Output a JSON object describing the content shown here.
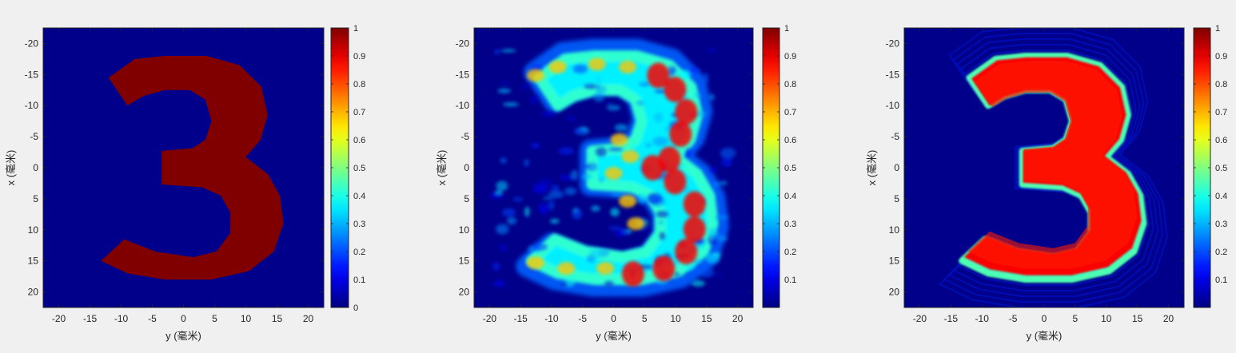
{
  "figure": {
    "background": "#f0f0f0",
    "panels": [
      {
        "id": "target",
        "colormap": "jet",
        "shape": "digit-3-sharp",
        "xlabel": "y (毫米)",
        "ylabel": "x (毫米)"
      },
      {
        "id": "reconstruction-noisy",
        "colormap": "jet",
        "shape": "digit-3-noisy",
        "xlabel": "y (毫米)",
        "ylabel": "x (毫米)"
      },
      {
        "id": "reconstruction-smooth",
        "colormap": "jet",
        "shape": "digit-3-smooth",
        "xlabel": "y (毫米)",
        "ylabel": "x (毫米)"
      }
    ]
  },
  "chart_data": [
    {
      "type": "heatmap",
      "title": "",
      "xlabel": "y (毫米)",
      "ylabel": "x (毫米)",
      "xlim": [
        -22.5,
        22.5
      ],
      "ylim": [
        -22.5,
        22.5
      ],
      "y_reversed": true,
      "xticks": [
        -20,
        -15,
        -10,
        -5,
        0,
        5,
        10,
        15,
        20
      ],
      "xtick_labels": [
        "-20",
        "-15",
        "-10",
        "-5",
        "0",
        "5",
        "10",
        "15",
        "20"
      ],
      "yticks": [
        -20,
        -15,
        -10,
        -5,
        0,
        5,
        10,
        15,
        20
      ],
      "ytick_labels": [
        "-20",
        "-15",
        "-10",
        "-5",
        "0",
        "5",
        "10",
        "15",
        "20"
      ],
      "colorbar": {
        "range": [
          0,
          1
        ],
        "ticks": [
          0,
          0.1,
          0.2,
          0.3,
          0.4,
          0.5,
          0.6,
          0.7,
          0.8,
          0.9,
          1
        ],
        "tick_labels": [
          "0",
          "0.1",
          "0.2",
          "0.3",
          "0.4",
          "0.5",
          "0.6",
          "0.7",
          "0.8",
          "0.9",
          "1"
        ]
      },
      "content": "digit 3, value 1 inside, 0 outside"
    },
    {
      "type": "heatmap",
      "title": "",
      "xlabel": "y (毫米)",
      "ylabel": "x (毫米)",
      "xlim": [
        -22.5,
        22.5
      ],
      "ylim": [
        -22.5,
        22.5
      ],
      "y_reversed": true,
      "xticks": [
        -20,
        -15,
        -10,
        -5,
        0,
        5,
        10,
        15,
        20
      ],
      "xtick_labels": [
        "-20",
        "-15",
        "-10",
        "-5",
        "0",
        "5",
        "10",
        "15",
        "20"
      ],
      "yticks": [
        -20,
        -15,
        -10,
        -5,
        0,
        5,
        10,
        15,
        20
      ],
      "ytick_labels": [
        "-20",
        "-15",
        "-10",
        "-5",
        "0",
        "5",
        "10",
        "15",
        "20"
      ],
      "colorbar": {
        "range": [
          0,
          1
        ],
        "ticks": [
          0.1,
          0.2,
          0.3,
          0.4,
          0.5,
          0.6,
          0.7,
          0.8,
          0.9,
          1
        ],
        "tick_labels": [
          "0.1",
          "0.2",
          "0.3",
          "0.4",
          "0.5",
          "0.6",
          "0.7",
          "0.8",
          "0.9",
          "1"
        ]
      },
      "content": "noisy reconstruction of digit 3"
    },
    {
      "type": "heatmap",
      "title": "",
      "xlabel": "y (毫米)",
      "ylabel": "x (毫米)",
      "xlim": [
        -22.5,
        22.5
      ],
      "ylim": [
        -22.5,
        22.5
      ],
      "y_reversed": true,
      "xticks": [
        -20,
        -15,
        -10,
        -5,
        0,
        5,
        10,
        15,
        20
      ],
      "xtick_labels": [
        "-20",
        "-15",
        "-10",
        "-5",
        "0",
        "5",
        "10",
        "15",
        "20"
      ],
      "yticks": [
        -20,
        -15,
        -10,
        -5,
        0,
        5,
        10,
        15,
        20
      ],
      "ytick_labels": [
        "-20",
        "-15",
        "-10",
        "-5",
        "0",
        "5",
        "10",
        "15",
        "20"
      ],
      "colorbar": {
        "range": [
          0,
          1
        ],
        "ticks": [
          0.1,
          0.2,
          0.3,
          0.4,
          0.5,
          0.6,
          0.7,
          0.8,
          0.9,
          1
        ],
        "tick_labels": [
          "0.1",
          "0.2",
          "0.3",
          "0.4",
          "0.5",
          "0.6",
          "0.7",
          "0.8",
          "0.9",
          "1"
        ]
      },
      "content": "smooth reconstruction of digit 3"
    }
  ]
}
